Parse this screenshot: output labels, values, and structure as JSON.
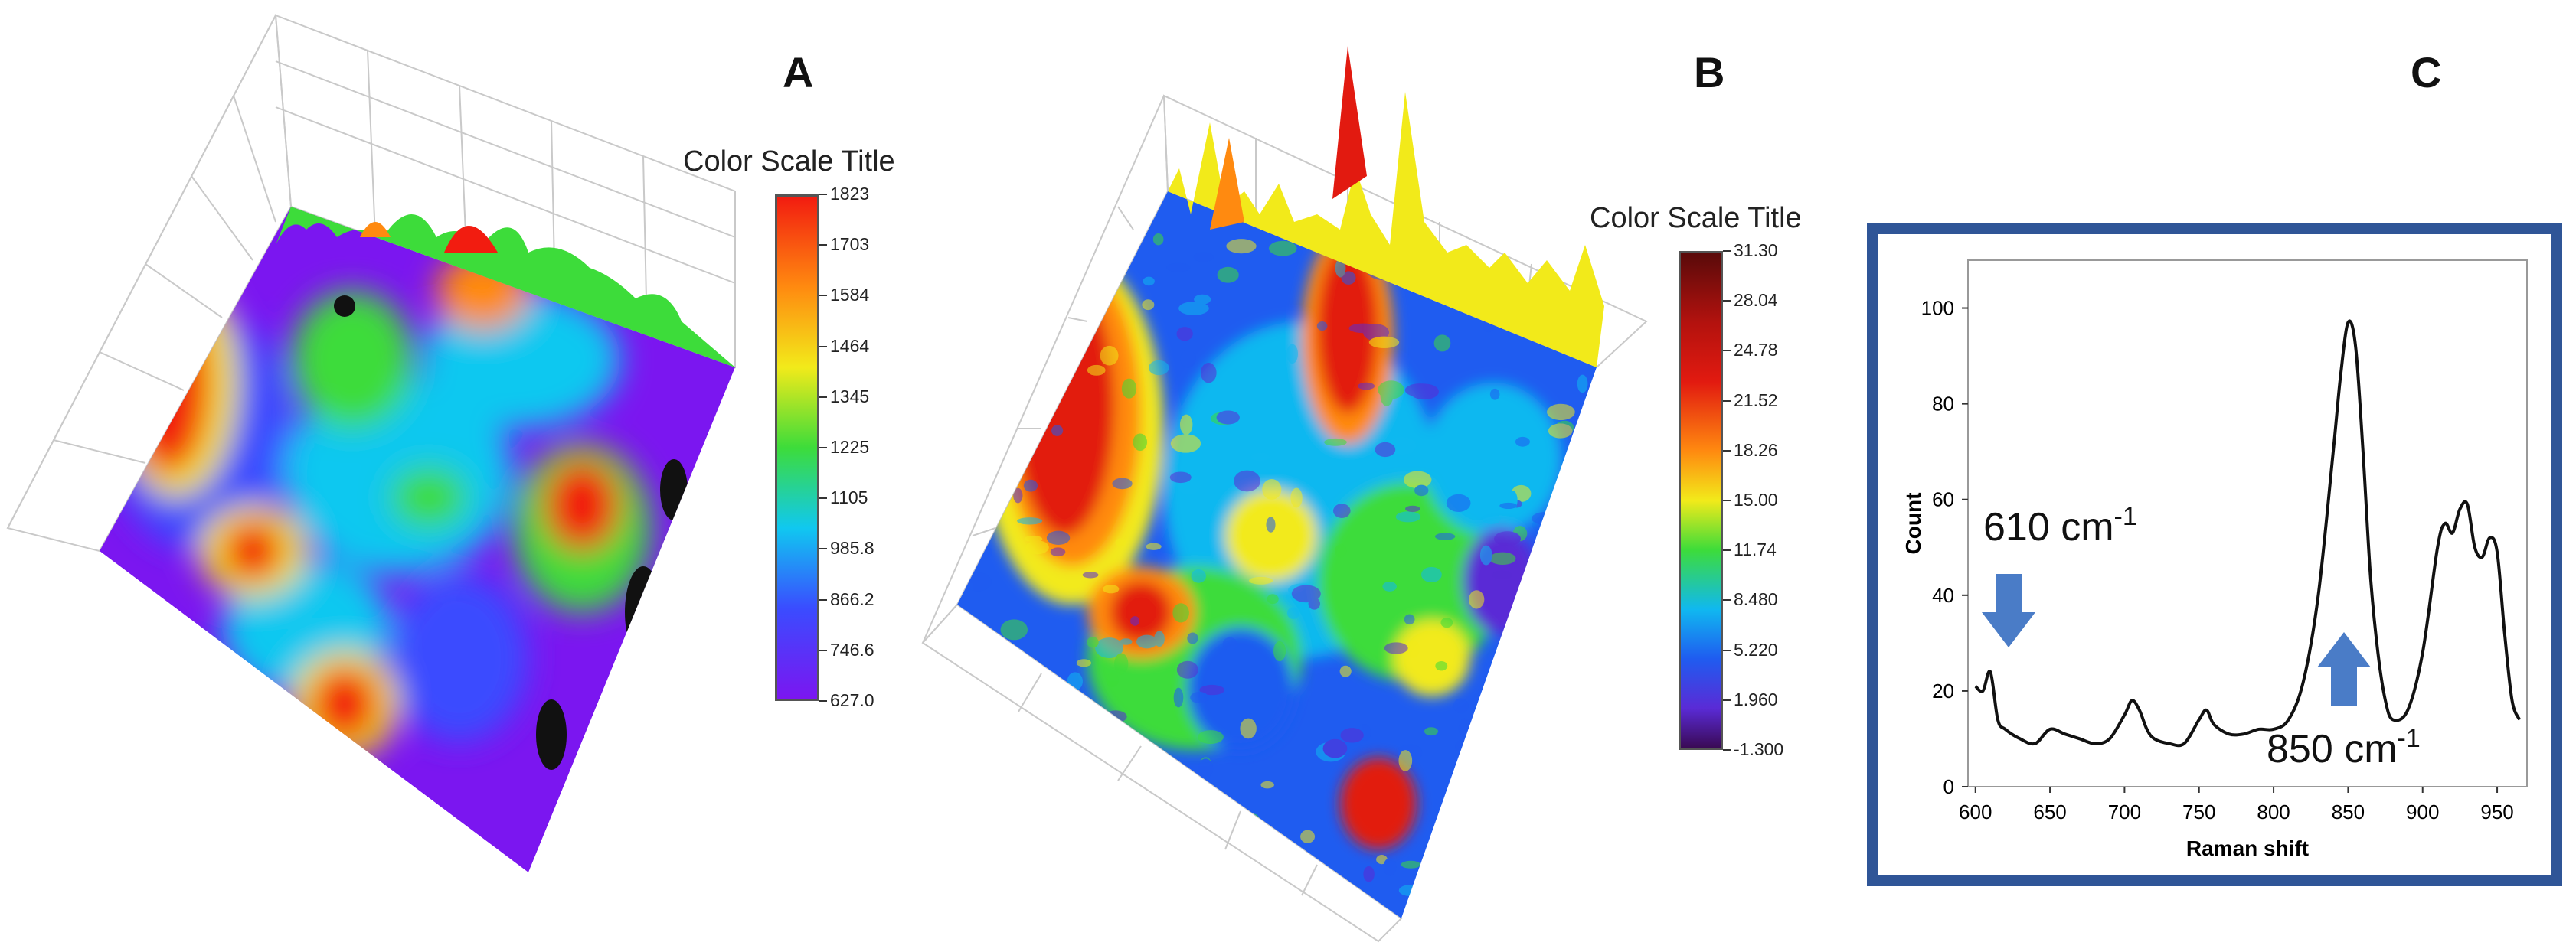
{
  "panels": {
    "a_label": "A",
    "b_label": "B",
    "c_label": "C"
  },
  "chart_data": [
    {
      "type": "heatmap",
      "panel": "A",
      "subtype": "3d-surface",
      "colorbar_title": "Color Scale Title",
      "colorbar_ticks": [
        "1823",
        "1703",
        "1584",
        "1464",
        "1345",
        "1225",
        "1105",
        "985.8",
        "866.2",
        "746.6",
        "627.0"
      ],
      "zlim": [
        627.0,
        1823
      ],
      "colors": [
        "#7b16f0",
        "#3a4cff",
        "#10c8f0",
        "#3ddc3a",
        "#f2ea1a",
        "#ff8a10",
        "#f21c10"
      ]
    },
    {
      "type": "heatmap",
      "panel": "B",
      "subtype": "3d-surface",
      "colorbar_title": "Color Scale Title",
      "colorbar_ticks": [
        "31.30",
        "28.04",
        "24.78",
        "21.52",
        "18.26",
        "15.00",
        "11.74",
        "8.480",
        "5.220",
        "1.960",
        "-1.300"
      ],
      "zlim": [
        -1.3,
        31.3
      ],
      "colors": [
        "#3a0a55",
        "#5a2bd6",
        "#1f5cf0",
        "#10b8f0",
        "#3ddc3a",
        "#f2ea1a",
        "#ff8a10",
        "#e21a10",
        "#6e0a0a"
      ]
    },
    {
      "type": "line",
      "panel": "C",
      "title": "",
      "xlabel": "Raman shift",
      "ylabel": "Count",
      "xlim": [
        595,
        970
      ],
      "ylim": [
        0,
        110
      ],
      "xticks": [
        600,
        650,
        700,
        750,
        800,
        850,
        900,
        950
      ],
      "yticks": [
        0,
        20,
        40,
        60,
        80,
        100
      ],
      "x": [
        600,
        605,
        610,
        615,
        620,
        630,
        640,
        650,
        660,
        670,
        680,
        690,
        700,
        705,
        710,
        715,
        720,
        730,
        740,
        750,
        755,
        760,
        770,
        780,
        790,
        800,
        810,
        820,
        830,
        840,
        845,
        850,
        855,
        860,
        865,
        870,
        875,
        880,
        890,
        900,
        910,
        915,
        920,
        925,
        930,
        935,
        940,
        945,
        950,
        955,
        960,
        965
      ],
      "y": [
        21,
        20,
        24,
        14,
        12,
        10,
        9,
        12,
        11,
        10,
        9,
        10,
        15,
        18,
        16,
        12,
        10,
        9,
        9,
        14,
        16,
        13,
        11,
        11,
        12,
        12,
        14,
        22,
        40,
        70,
        86,
        97,
        92,
        70,
        44,
        28,
        18,
        14,
        16,
        28,
        50,
        55,
        53,
        58,
        59,
        50,
        48,
        52,
        49,
        32,
        18,
        14
      ],
      "annotations": [
        {
          "text": "610 cm",
          "sup": "-1",
          "x": 610,
          "direction": "down"
        },
        {
          "text": "850 cm",
          "sup": "-1",
          "x": 850,
          "direction": "up"
        }
      ],
      "line_color": "#111111",
      "arrow_color": "#4a7cc7",
      "frame_color": "#2f5597"
    }
  ]
}
